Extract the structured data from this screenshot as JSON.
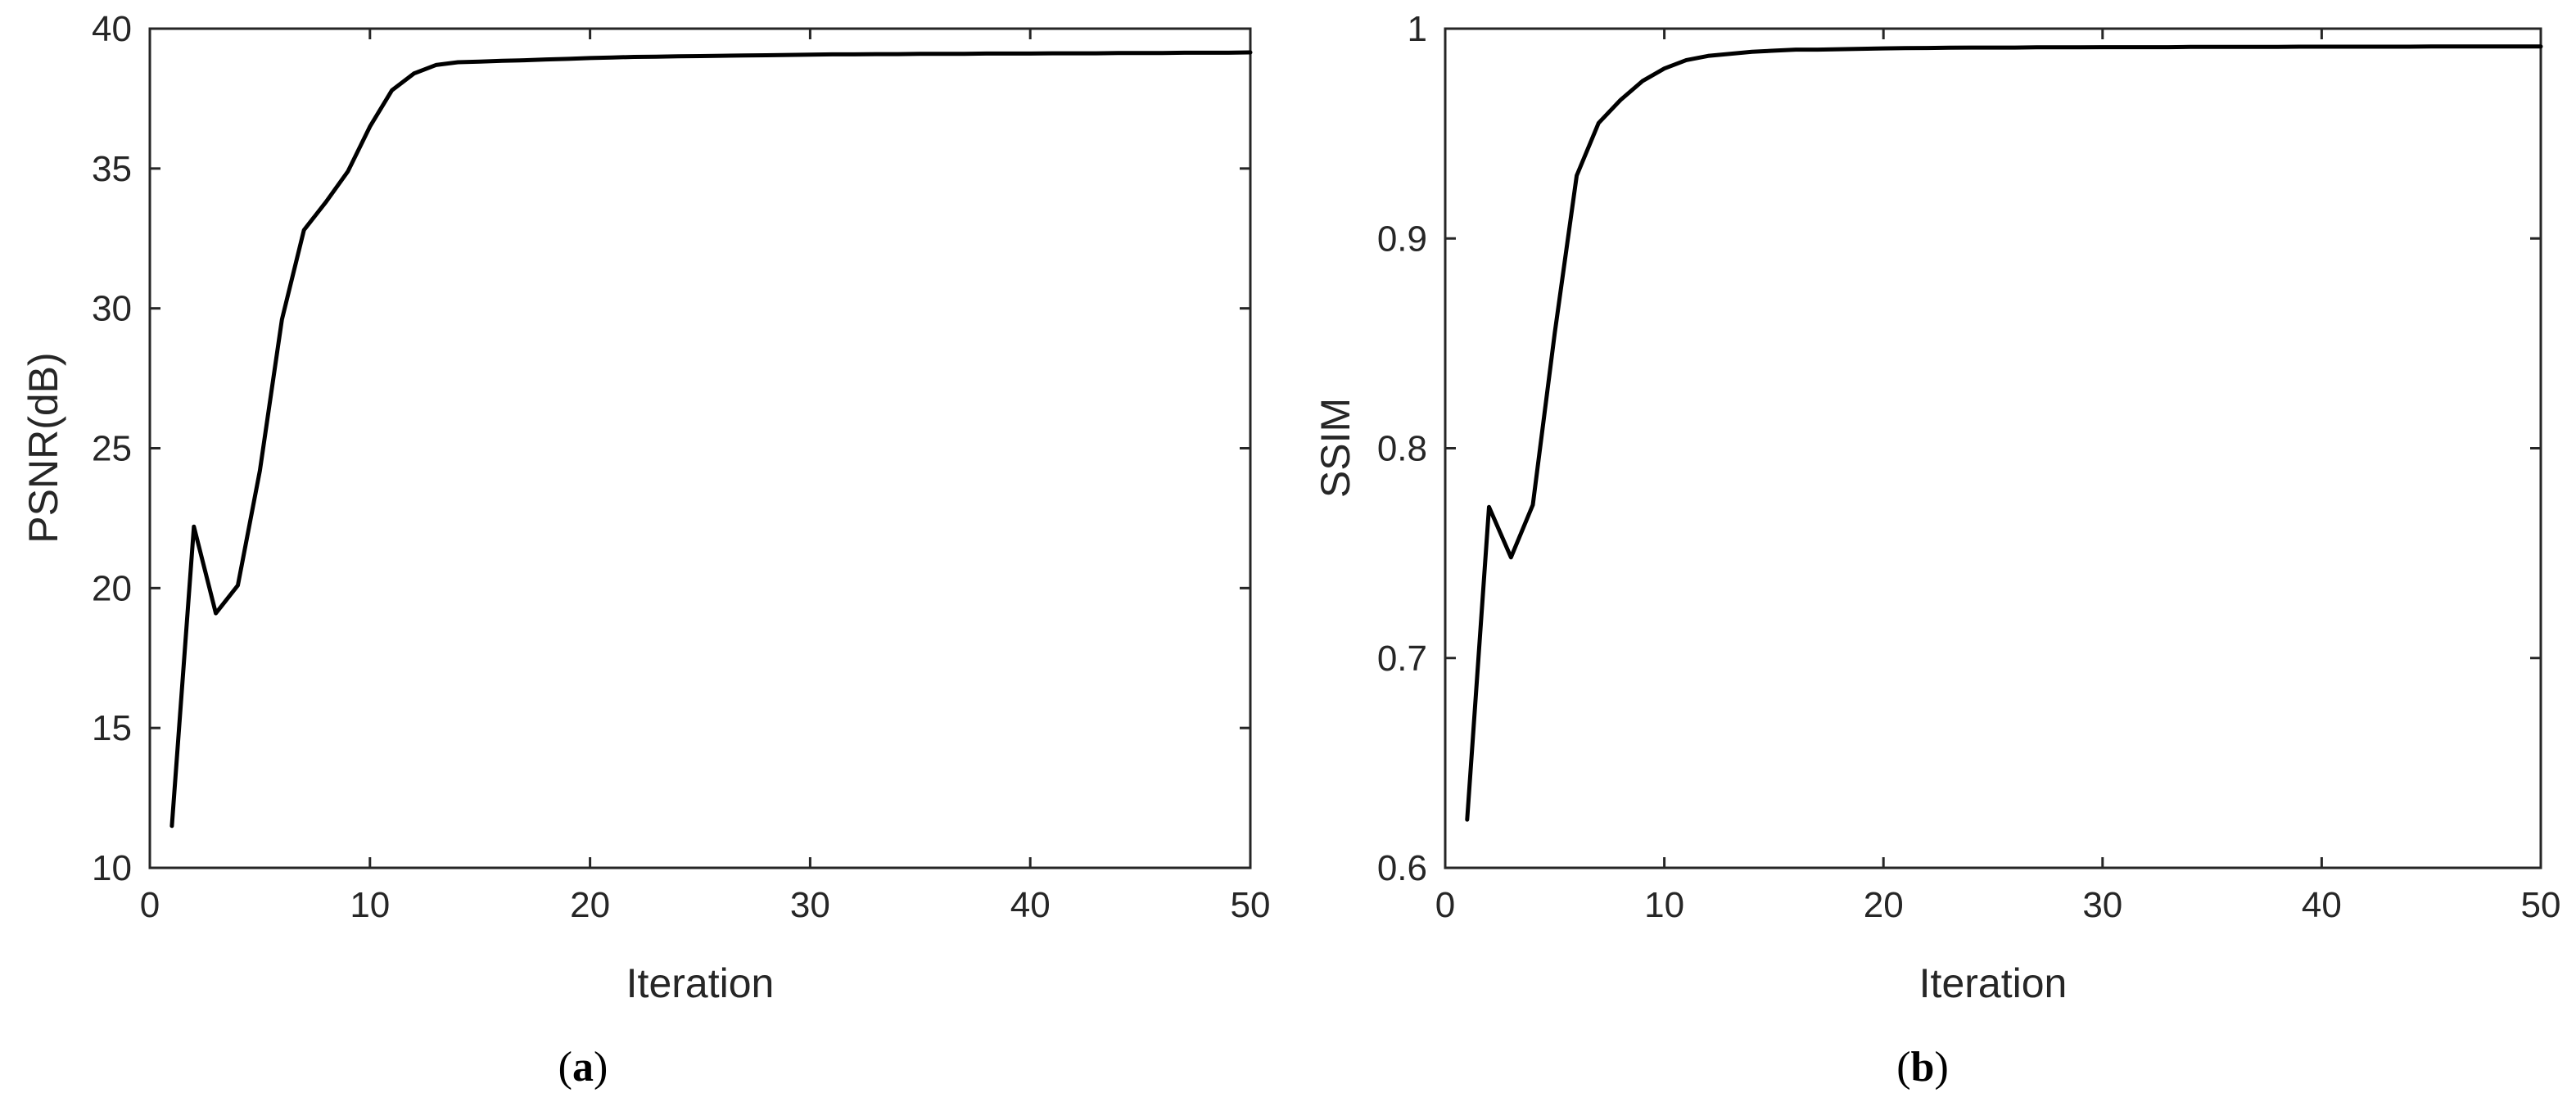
{
  "chart_data": [
    {
      "type": "line",
      "caption": "(a)",
      "caption_letter": "a",
      "title": "",
      "xlabel": "Iteration",
      "ylabel": "PSNR(dB)",
      "xlim": [
        0,
        50
      ],
      "ylim": [
        10,
        40
      ],
      "xticks": [
        0,
        10,
        20,
        30,
        40,
        50
      ],
      "yticks": [
        10,
        15,
        20,
        25,
        30,
        35,
        40
      ],
      "grid": false,
      "series": [
        {
          "color": "#000000",
          "x": [
            1,
            2,
            3,
            4,
            5,
            6,
            7,
            8,
            9,
            10,
            11,
            12,
            13,
            14,
            15,
            16,
            17,
            18,
            19,
            20,
            21,
            22,
            23,
            24,
            25,
            26,
            27,
            28,
            29,
            30,
            31,
            32,
            33,
            34,
            35,
            36,
            37,
            38,
            39,
            40,
            41,
            42,
            43,
            44,
            45,
            46,
            47,
            48,
            49,
            50
          ],
          "y": [
            11.5,
            22.2,
            19.1,
            20.1,
            24.2,
            29.6,
            32.8,
            33.8,
            34.9,
            36.5,
            37.8,
            38.4,
            38.7,
            38.8,
            38.82,
            38.85,
            38.87,
            38.9,
            38.92,
            38.95,
            38.97,
            38.99,
            39.0,
            39.01,
            39.02,
            39.03,
            39.04,
            39.05,
            39.06,
            39.07,
            39.08,
            39.08,
            39.09,
            39.09,
            39.1,
            39.1,
            39.1,
            39.11,
            39.11,
            39.11,
            39.12,
            39.12,
            39.12,
            39.13,
            39.13,
            39.13,
            39.14,
            39.14,
            39.14,
            39.15
          ]
        }
      ]
    },
    {
      "type": "line",
      "caption": "(b)",
      "caption_letter": "b",
      "title": "",
      "xlabel": "Iteration",
      "ylabel": "SSIM",
      "xlim": [
        0,
        50
      ],
      "ylim": [
        0.6,
        1
      ],
      "xticks": [
        0,
        10,
        20,
        30,
        40,
        50
      ],
      "yticks": [
        0.6,
        0.7,
        0.8,
        0.9,
        1
      ],
      "ytick_labels": [
        "0.6",
        "0.7",
        "0.8",
        "0.9",
        "1"
      ],
      "grid": false,
      "series": [
        {
          "color": "#000000",
          "x": [
            1,
            2,
            3,
            4,
            5,
            6,
            7,
            8,
            9,
            10,
            11,
            12,
            13,
            14,
            15,
            16,
            17,
            18,
            19,
            20,
            21,
            22,
            23,
            24,
            25,
            26,
            27,
            28,
            29,
            30,
            31,
            32,
            33,
            34,
            35,
            36,
            37,
            38,
            39,
            40,
            41,
            42,
            43,
            44,
            45,
            46,
            47,
            48,
            49,
            50
          ],
          "y": [
            0.623,
            0.772,
            0.748,
            0.773,
            0.855,
            0.93,
            0.955,
            0.966,
            0.975,
            0.981,
            0.985,
            0.987,
            0.988,
            0.989,
            0.9895,
            0.99,
            0.99,
            0.9902,
            0.9904,
            0.9906,
            0.9907,
            0.9908,
            0.9909,
            0.991,
            0.991,
            0.991,
            0.9911,
            0.9911,
            0.9911,
            0.9912,
            0.9912,
            0.9912,
            0.9912,
            0.9913,
            0.9913,
            0.9913,
            0.9913,
            0.9913,
            0.9914,
            0.9914,
            0.9914,
            0.9914,
            0.9914,
            0.9914,
            0.9915,
            0.9915,
            0.9915,
            0.9915,
            0.9915,
            0.9915
          ]
        }
      ]
    }
  ]
}
